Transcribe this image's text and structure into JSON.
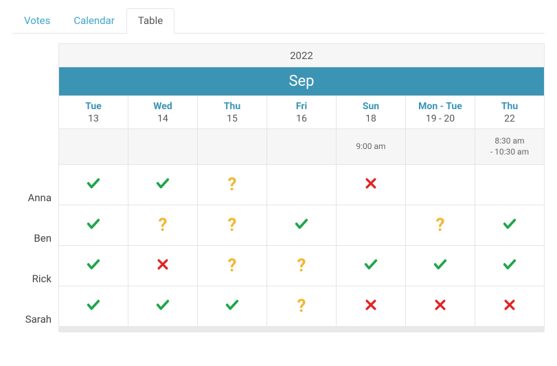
{
  "tabs": [
    {
      "label": "Votes",
      "active": false
    },
    {
      "label": "Calendar",
      "active": false
    },
    {
      "label": "Table",
      "active": true
    }
  ],
  "year": "2022",
  "month": "Sep",
  "columns": [
    {
      "dow": "Tue",
      "dom": "13",
      "time": ""
    },
    {
      "dow": "Wed",
      "dom": "14",
      "time": ""
    },
    {
      "dow": "Thu",
      "dom": "15",
      "time": ""
    },
    {
      "dow": "Fri",
      "dom": "16",
      "time": ""
    },
    {
      "dow": "Sun",
      "dom": "18",
      "time": "9:00 am"
    },
    {
      "dow": "Mon - Tue",
      "dom": "19 - 20",
      "time": ""
    },
    {
      "dow": "Thu",
      "dom": "22",
      "time": "8:30 am\n- 10:30 am"
    }
  ],
  "participants": [
    {
      "name": "Anna",
      "votes": [
        "yes",
        "yes",
        "maybe",
        "",
        "no",
        "",
        ""
      ]
    },
    {
      "name": "Ben",
      "votes": [
        "yes",
        "maybe",
        "maybe",
        "yes",
        "",
        "maybe",
        "yes"
      ]
    },
    {
      "name": "Rick",
      "votes": [
        "yes",
        "no",
        "maybe",
        "maybe",
        "yes",
        "yes",
        "yes"
      ]
    },
    {
      "name": "Sarah",
      "votes": [
        "yes",
        "yes",
        "yes",
        "maybe",
        "no",
        "no",
        "no"
      ]
    }
  ],
  "colors": {
    "accent": "#3b94b4",
    "yes": "#1ea64b",
    "no": "#e02424",
    "maybe": "#f2b632"
  }
}
